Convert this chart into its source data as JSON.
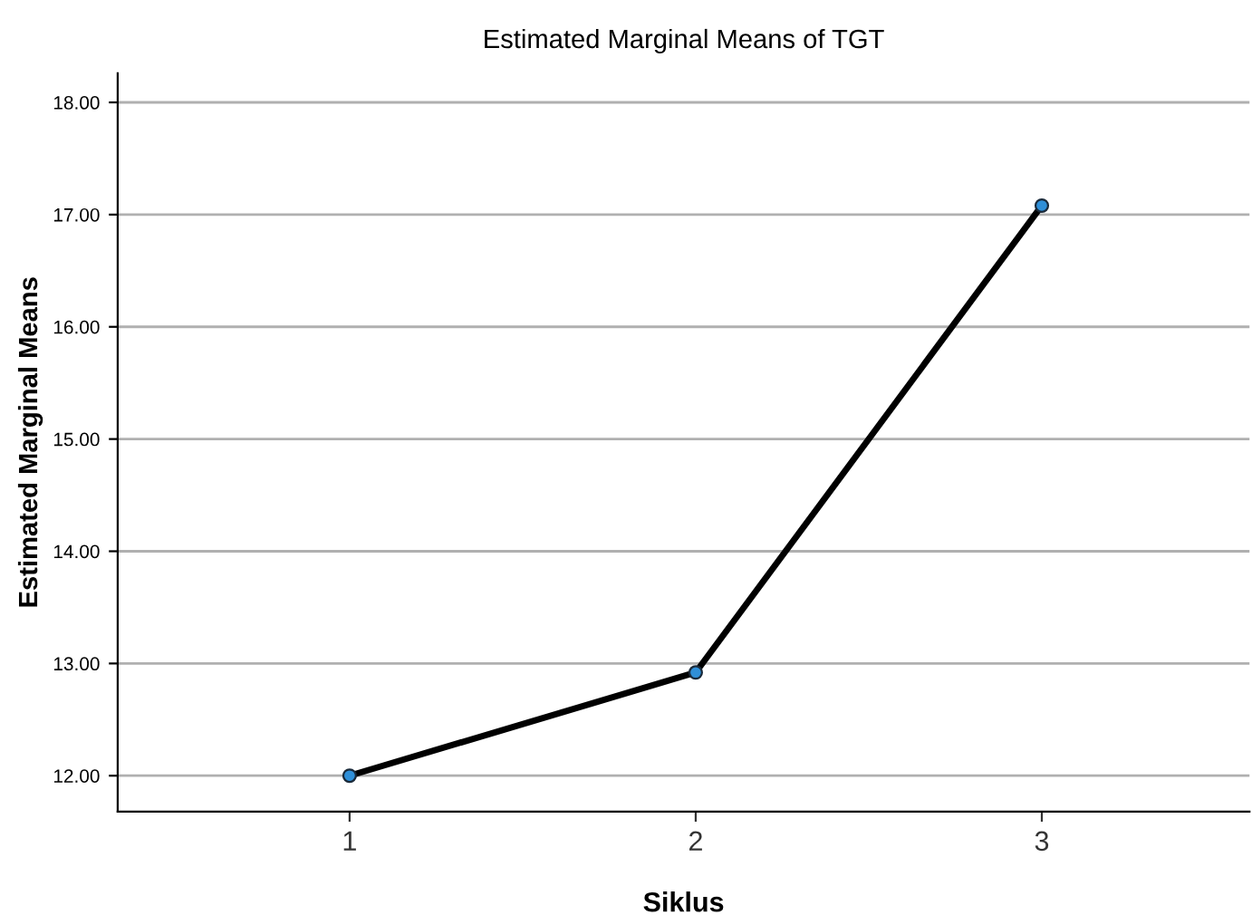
{
  "chart_data": {
    "type": "line",
    "title": "Estimated Marginal Means of TGT",
    "xlabel": "Siklus",
    "ylabel": "Estimated Marginal Means",
    "categories": [
      "1",
      "2",
      "3"
    ],
    "series": [
      {
        "color": "#000000",
        "values": [
          12.0,
          12.92,
          17.08
        ]
      }
    ],
    "ylim": [
      11.68,
      18.26
    ],
    "yticks": [
      {
        "value": 12,
        "label": "12.00"
      },
      {
        "value": 13,
        "label": "13.00"
      },
      {
        "value": 14,
        "label": "14.00"
      },
      {
        "value": 15,
        "label": "15.00"
      },
      {
        "value": 16,
        "label": "16.00"
      },
      {
        "value": 17,
        "label": "17.00"
      },
      {
        "value": 18,
        "label": "18.00"
      }
    ],
    "grid": "y",
    "marker": "circle",
    "line_style": "solid",
    "legend": false
  }
}
